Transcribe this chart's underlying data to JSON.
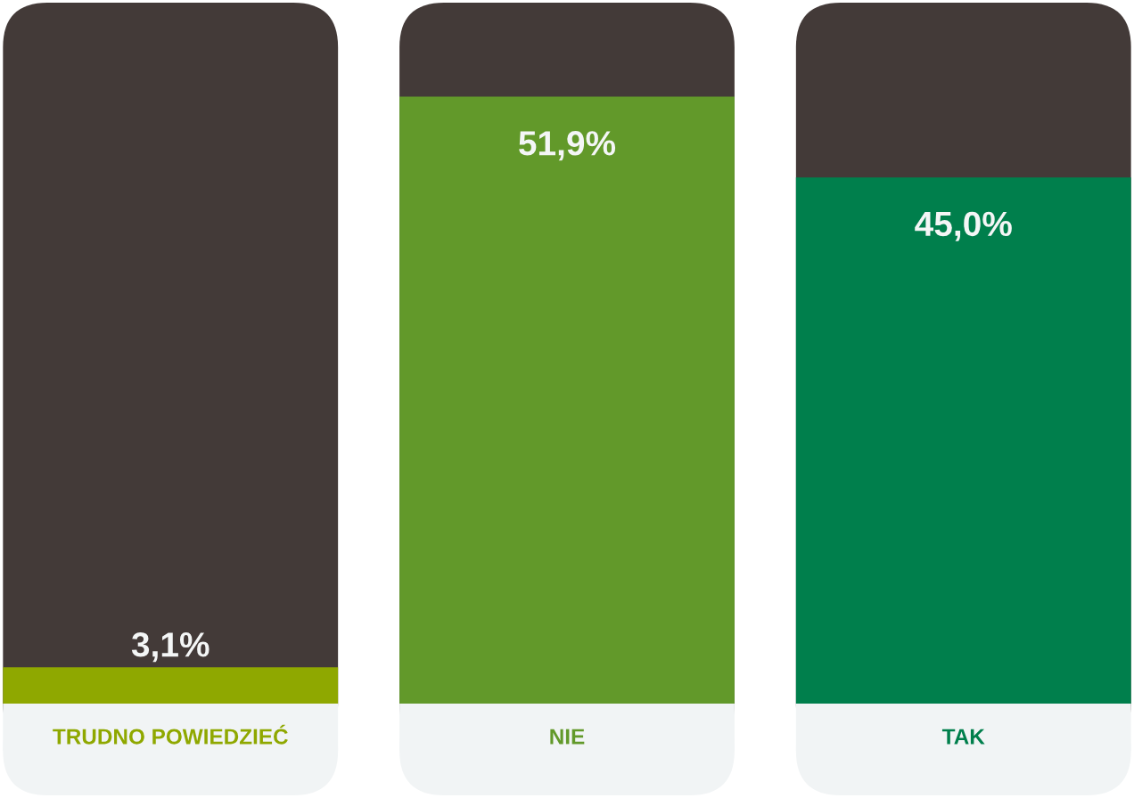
{
  "chart_data": {
    "type": "bar",
    "categories": [
      "TRUDNO POWIEDZIEĆ",
      "NIE",
      "TAK"
    ],
    "values": [
      3.1,
      51.9,
      45.0
    ],
    "colors": [
      "#8fa800",
      "#62992a",
      "#007f4c"
    ],
    "value_labels": [
      "3,1%",
      "51,9%",
      "45,0%"
    ],
    "tick_labels": "x"
  }
}
